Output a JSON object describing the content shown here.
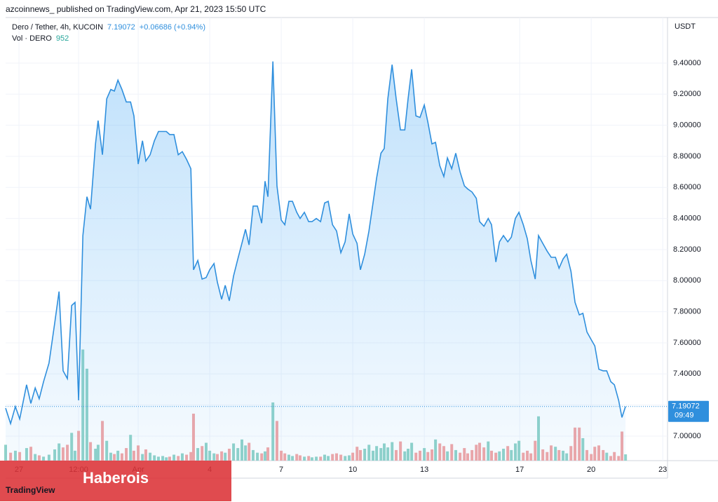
{
  "publisher": "azcoinnews_ published on TradingView.com, Apr 21, 2023 15:50 UTC",
  "banner": "Haberois",
  "watermark": "TradingView",
  "chart_data": {
    "type": "line",
    "currency": "USDT",
    "change": "+0.06686 (+0.94%)",
    "countdown": "09:49",
    "x": [
      -0.56,
      -0.35,
      -0.15,
      0.03,
      0.32,
      0.5,
      0.68,
      0.85,
      1.03,
      1.26,
      1.5,
      1.68,
      1.85,
      2.03,
      2.21,
      2.35,
      2.5,
      2.68,
      2.85,
      3.0,
      3.21,
      3.32,
      3.5,
      3.68,
      3.85,
      4.0,
      4.15,
      4.32,
      4.5,
      4.68,
      4.82,
      5.0,
      5.18,
      5.32,
      5.5,
      5.68,
      5.85,
      6.03,
      6.18,
      6.32,
      6.5,
      6.68,
      6.85,
      7.03,
      7.21,
      7.32,
      7.5,
      7.68,
      7.85,
      8.0,
      8.18,
      8.32,
      8.5,
      8.65,
      8.82,
      9.0,
      9.18,
      9.35,
      9.5,
      9.65,
      9.82,
      10.0,
      10.18,
      10.32,
      10.44,
      10.65,
      10.82,
      11.0,
      11.15,
      11.32,
      11.47,
      11.65,
      11.79,
      11.97,
      12.15,
      12.29,
      12.47,
      12.65,
      12.82,
      12.97,
      13.15,
      13.32,
      13.5,
      13.68,
      13.85,
      14.0,
      14.18,
      14.32,
      14.5,
      14.68,
      14.85,
      15.0,
      15.18,
      15.32,
      15.47,
      15.65,
      15.82,
      16.0,
      16.18,
      16.32,
      16.47,
      16.65,
      16.82,
      17.0,
      17.15,
      17.32,
      17.47,
      17.65,
      17.82,
      17.97,
      18.15,
      18.32,
      18.5,
      18.68,
      18.82,
      19.0,
      19.18,
      19.32,
      19.5,
      19.68,
      19.82,
      20.0,
      20.15,
      20.32,
      20.5,
      20.65,
      20.82,
      20.97,
      21.15,
      21.32,
      21.47,
      21.65,
      21.79,
      21.97,
      22.15,
      22.32,
      22.5,
      22.65,
      22.82,
      22.97,
      23.15,
      23.32,
      23.5,
      23.65,
      23.82,
      24.0,
      24.15,
      24.32,
      24.5,
      24.65,
      24.82,
      24.97,
      25.15,
      25.29,
      25.44
    ],
    "series": [
      {
        "name": "Dero / Tether, 4h, KUCOIN",
        "color": "#2f8fdd",
        "values": [
          7.18,
          7.08,
          7.19,
          7.11,
          7.33,
          7.21,
          7.31,
          7.24,
          7.35,
          7.47,
          7.73,
          7.93,
          7.42,
          7.37,
          7.84,
          7.86,
          7.23,
          8.29,
          8.54,
          8.46,
          8.88,
          9.03,
          8.81,
          9.17,
          9.23,
          9.22,
          9.29,
          9.23,
          9.15,
          9.15,
          9.06,
          8.75,
          8.9,
          8.77,
          8.81,
          8.9,
          8.96,
          8.96,
          8.96,
          8.94,
          8.94,
          8.81,
          8.83,
          8.78,
          8.72,
          8.07,
          8.13,
          8.01,
          8.02,
          8.07,
          8.11,
          7.99,
          7.88,
          7.97,
          7.87,
          8.03,
          8.14,
          8.24,
          8.33,
          8.23,
          8.48,
          8.48,
          8.37,
          8.64,
          8.54,
          9.41,
          8.61,
          8.39,
          8.36,
          8.51,
          8.51,
          8.44,
          8.4,
          8.44,
          8.38,
          8.38,
          8.4,
          8.38,
          8.5,
          8.51,
          8.36,
          8.32,
          8.18,
          8.25,
          8.43,
          8.3,
          8.24,
          8.07,
          8.17,
          8.32,
          8.5,
          8.66,
          8.82,
          8.85,
          9.17,
          9.39,
          9.17,
          8.97,
          8.97,
          9.17,
          9.36,
          9.06,
          9.05,
          9.13,
          9.02,
          8.88,
          8.89,
          8.74,
          8.67,
          8.79,
          8.72,
          8.82,
          8.7,
          8.61,
          8.59,
          8.57,
          8.53,
          8.38,
          8.35,
          8.4,
          8.36,
          8.12,
          8.25,
          8.29,
          8.25,
          8.28,
          8.4,
          8.44,
          8.36,
          8.27,
          8.13,
          8.01,
          8.29,
          8.24,
          8.19,
          8.15,
          8.15,
          8.08,
          8.14,
          8.17,
          8.06,
          7.86,
          7.78,
          7.79,
          7.67,
          7.62,
          7.58,
          7.43,
          7.42,
          7.42,
          7.35,
          7.33,
          7.23,
          7.12,
          7.19072
        ]
      },
      {
        "name": "Vol · DERO",
        "axis": "y2",
        "up_color": "#92d3c9",
        "down_color": "#f2a7a7",
        "values": [
          2400,
          1200,
          1500,
          1300,
          1900,
          2100,
          1000,
          800,
          600,
          900,
          1700,
          2600,
          2000,
          2400,
          4200,
          1500,
          4500,
          16800,
          13900,
          2800,
          1800,
          2400,
          6000,
          3000,
          1200,
          1000,
          1500,
          1100,
          1900,
          3900,
          1500,
          2300,
          1000,
          1700,
          1200,
          800,
          600,
          700,
          500,
          600,
          900,
          700,
          1100,
          900,
          1300,
          7100,
          1900,
          2200,
          2700,
          1500,
          1100,
          1000,
          1400,
          1200,
          1800,
          2600,
          1900,
          3200,
          2300,
          2700,
          1600,
          1200,
          1100,
          1400,
          2000,
          8800,
          6000,
          1500,
          1100,
          900,
          700,
          1000,
          800,
          600,
          700,
          500,
          600,
          600,
          900,
          700,
          1000,
          1100,
          900,
          700,
          800,
          1200,
          2100,
          1600,
          1800,
          2400,
          1500,
          2200,
          1900,
          2600,
          2000,
          2800,
          1600,
          2900,
          1400,
          1800,
          2700,
          1200,
          1500,
          1900,
          1300,
          1700,
          3200,
          2600,
          2200,
          1400,
          2500,
          1600,
          1200,
          1900,
          1100,
          1600,
          2400,
          2700,
          2000,
          2900,
          1500,
          1200,
          1400,
          1800,
          2200,
          1600,
          2600,
          3000,
          1200,
          1500,
          1100,
          3000,
          6700,
          1700,
          1300,
          2300,
          2100,
          1600,
          1500,
          1100,
          2200,
          5000,
          5000,
          3400,
          1600,
          1000,
          2100,
          2300,
          1600,
          1200,
          700,
          1300,
          700,
          4400,
          952
        ]
      }
    ],
    "xlim": [
      -0.56,
      27.2
    ],
    "xticks": [
      {
        "value": 0,
        "label": "27"
      },
      {
        "value": 2.5,
        "label": "12:00"
      },
      {
        "value": 5,
        "label": "Apr"
      },
      {
        "value": 8,
        "label": "4"
      },
      {
        "value": 11,
        "label": "7"
      },
      {
        "value": 14,
        "label": "10"
      },
      {
        "value": 17,
        "label": "13"
      },
      {
        "value": 21,
        "label": "17"
      },
      {
        "value": 24,
        "label": "20"
      },
      {
        "value": 27,
        "label": "23"
      }
    ],
    "ylim": [
      6.842,
      9.693
    ],
    "yticks": [
      {
        "value": 7.0,
        "label": "7.00000"
      },
      {
        "value": 7.2,
        "label": "7.20000"
      },
      {
        "value": 7.4,
        "label": "7.40000"
      },
      {
        "value": 7.6,
        "label": "7.60000"
      },
      {
        "value": 7.8,
        "label": "7.80000"
      },
      {
        "value": 8.0,
        "label": "8.00000"
      },
      {
        "value": 8.2,
        "label": "8.20000"
      },
      {
        "value": 8.4,
        "label": "8.40000"
      },
      {
        "value": 8.6,
        "label": "8.60000"
      },
      {
        "value": 8.8,
        "label": "8.80000"
      },
      {
        "value": 9.0,
        "label": "9.00000"
      },
      {
        "value": 9.2,
        "label": "9.20000"
      },
      {
        "value": 9.4,
        "label": "9.40000"
      }
    ],
    "y2lim": [
      0,
      67000
    ],
    "grid": true
  }
}
